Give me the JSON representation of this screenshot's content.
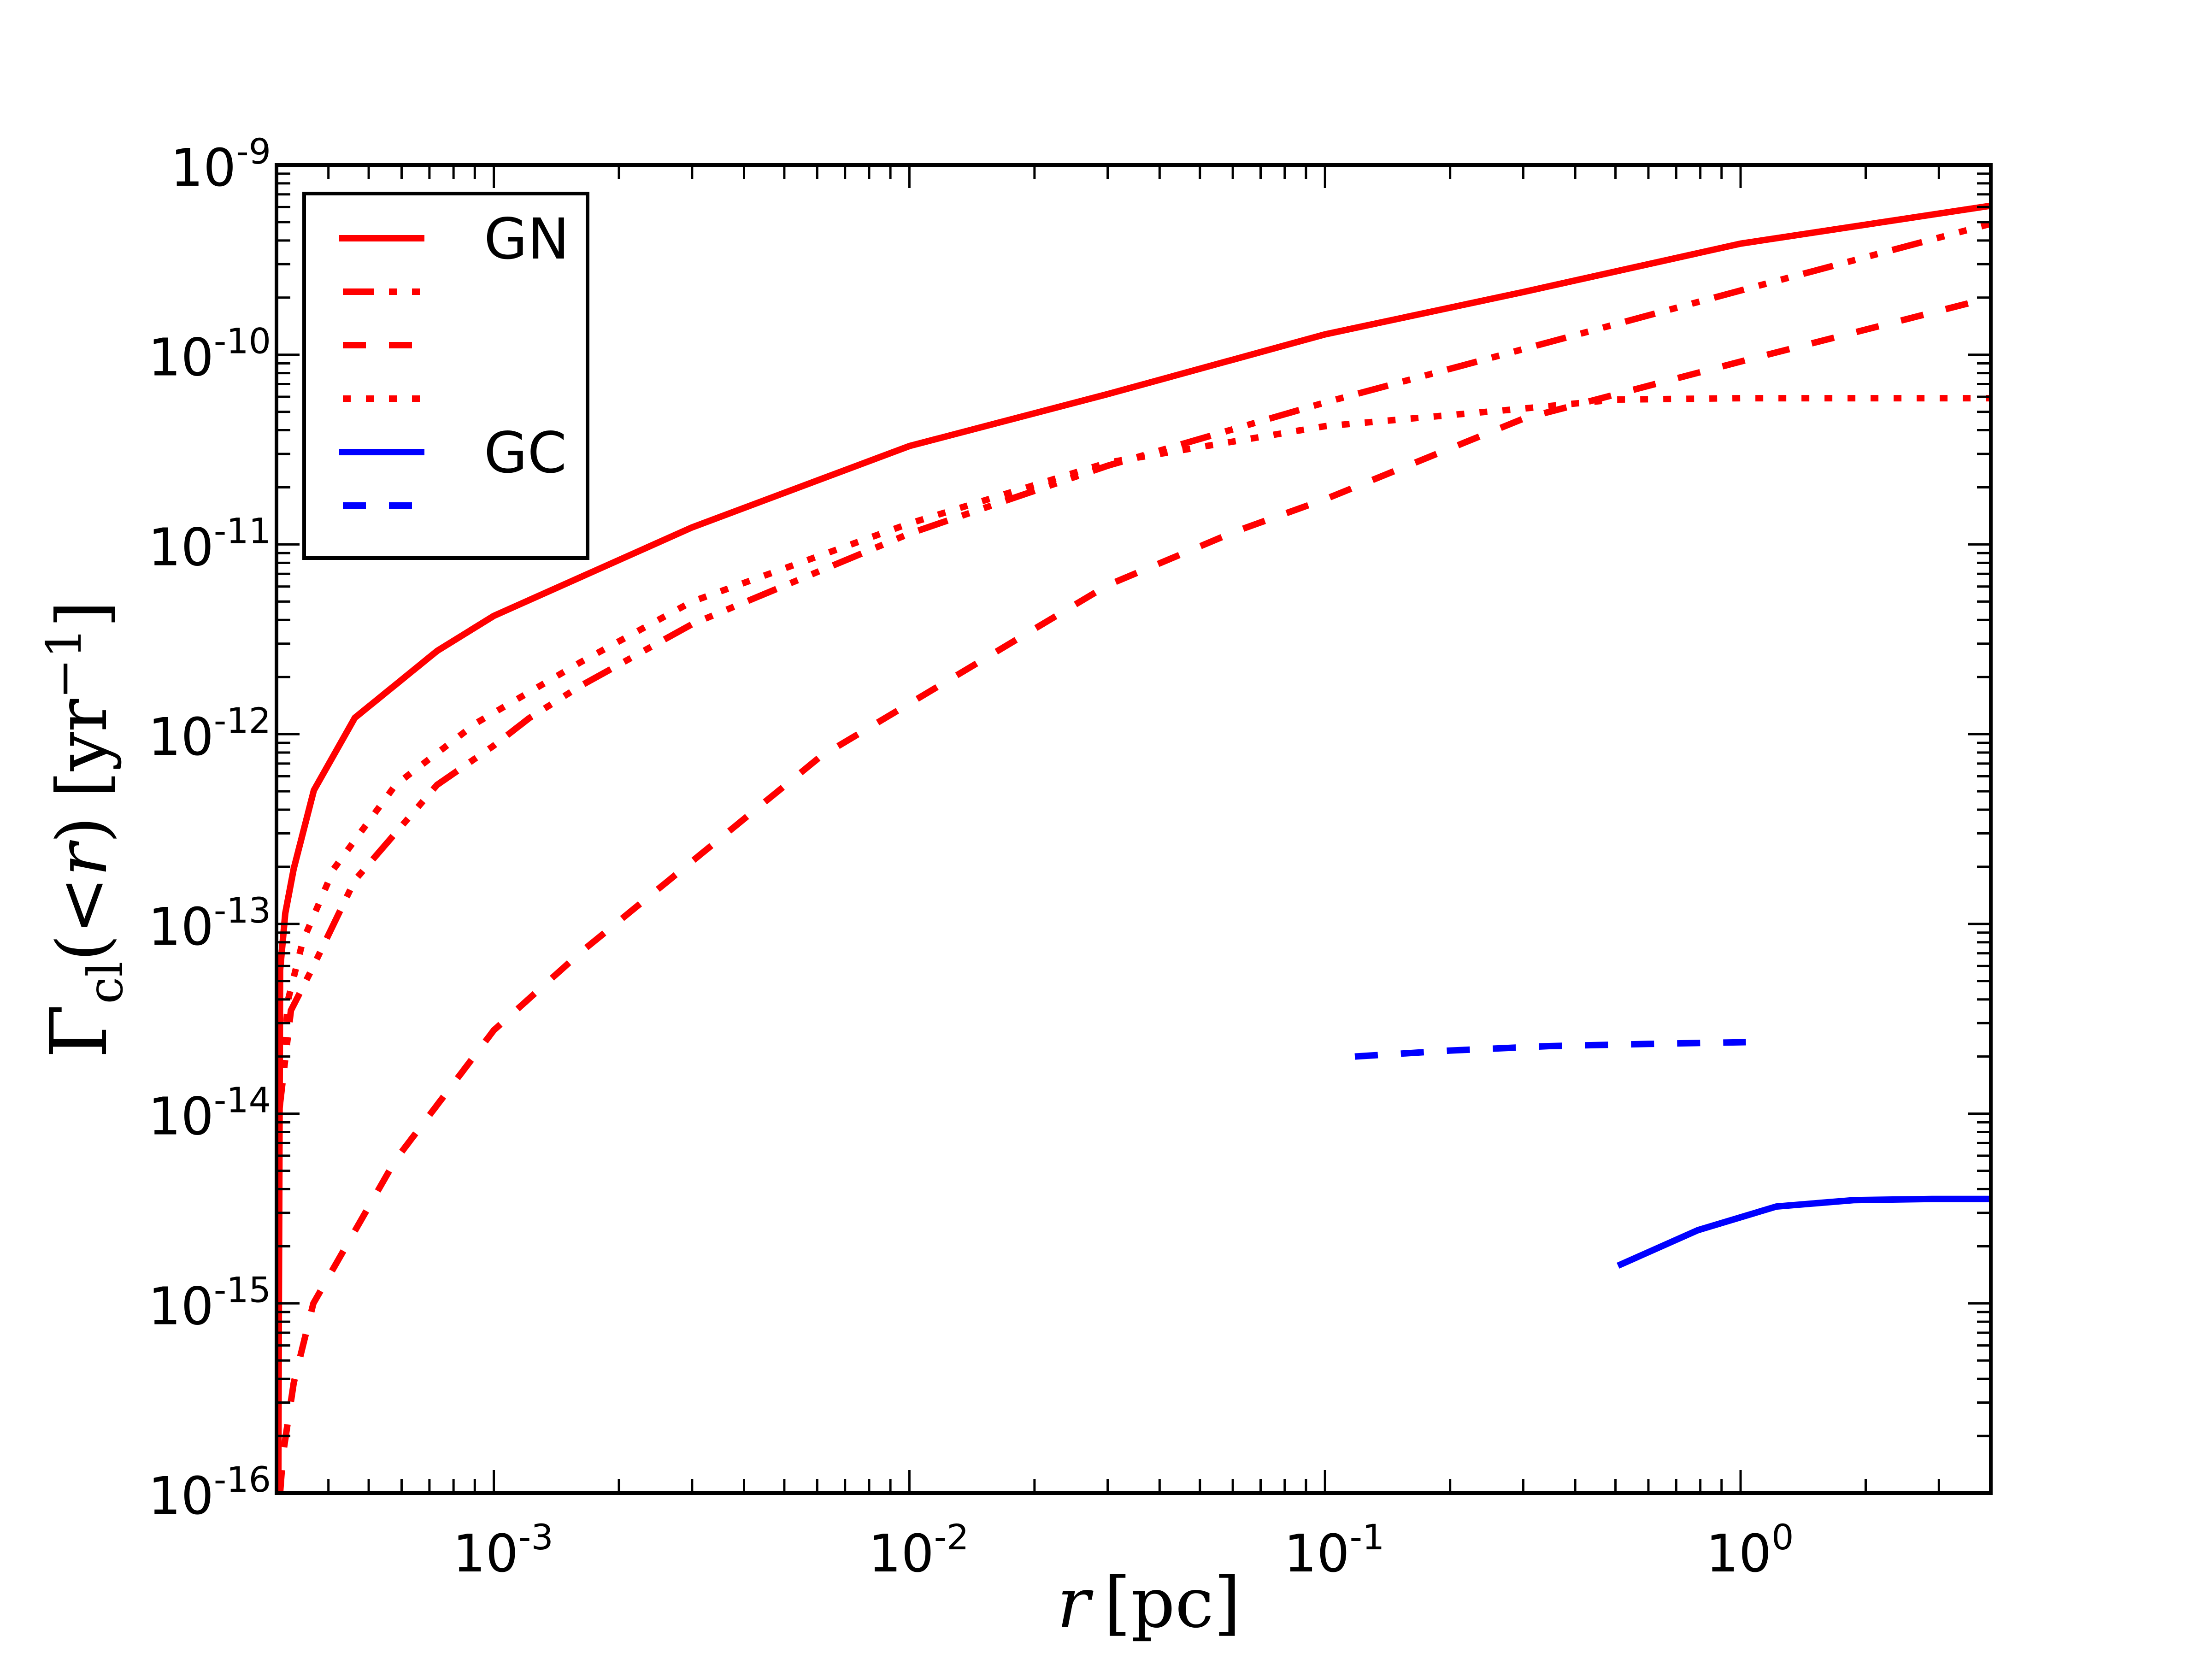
{
  "chart_data": {
    "type": "line",
    "title": "",
    "xlabel": "r [pc]",
    "ylabel": "Γcl(<r) [yr−1]",
    "xscale": "log",
    "yscale": "log",
    "xlim": [
      0.0003,
      4
    ],
    "ylim": [
      1e-16,
      1e-09
    ],
    "grid": false,
    "legend_placement": "top-left",
    "xticks": [
      {
        "value": 0.001,
        "base": "10",
        "exp": "-3"
      },
      {
        "value": 0.01,
        "base": "10",
        "exp": "-2"
      },
      {
        "value": 0.1,
        "base": "10",
        "exp": "-1"
      },
      {
        "value": 1,
        "base": "10",
        "exp": "0"
      }
    ],
    "yticks": [
      {
        "value": 1e-09,
        "base": "10",
        "exp": "-9"
      },
      {
        "value": 1e-10,
        "base": "10",
        "exp": "-10"
      },
      {
        "value": 1e-11,
        "base": "10",
        "exp": "-11"
      },
      {
        "value": 1e-12,
        "base": "10",
        "exp": "-12"
      },
      {
        "value": 1e-13,
        "base": "10",
        "exp": "-13"
      },
      {
        "value": 1e-14,
        "base": "10",
        "exp": "-14"
      },
      {
        "value": 1e-15,
        "base": "10",
        "exp": "-15"
      },
      {
        "value": 1e-16,
        "base": "10",
        "exp": "-16"
      }
    ],
    "series": [
      {
        "name": "GN",
        "color": "#ff0000",
        "style": "solid",
        "points": [
          [
            0.000303,
            1e-16
          ],
          [
            0.000304,
            1e-15
          ],
          [
            0.000306,
            5.7e-14
          ],
          [
            0.000315,
            1.14e-13
          ],
          [
            0.00033,
            1.95e-13
          ],
          [
            0.000369,
            5.06e-13
          ],
          [
            0.000463,
            1.22e-12
          ],
          [
            0.000731,
            2.75e-12
          ],
          [
            0.001,
            4.2e-12
          ],
          [
            0.003,
            1.23e-11
          ],
          [
            0.01,
            3.3e-11
          ],
          [
            0.03,
            6.2e-11
          ],
          [
            0.1,
            1.28e-10
          ],
          [
            0.3,
            2.14e-10
          ],
          [
            1,
            3.85e-10
          ],
          [
            4,
            6.1e-10
          ]
        ]
      },
      {
        "color": "#ff0000",
        "style": "dash-dot-dot",
        "points": [
          [
            0.000304,
            1e-14
          ],
          [
            0.000325,
            3.5e-14
          ],
          [
            0.000364,
            5.7e-14
          ],
          [
            0.000463,
            1.7e-13
          ],
          [
            0.00073,
            5.4e-13
          ],
          [
            0.001,
            8.7e-13
          ],
          [
            0.00122,
            1.22e-12
          ],
          [
            0.00162,
            1.8e-12
          ],
          [
            0.003,
            3.8e-12
          ],
          [
            0.01,
            1.14e-11
          ],
          [
            0.03,
            2.6e-11
          ],
          [
            0.1,
            5.6e-11
          ],
          [
            0.3,
            1.07e-10
          ],
          [
            1,
            2.18e-10
          ],
          [
            4,
            4.9e-10
          ]
        ]
      },
      {
        "color": "#ff0000",
        "style": "dashed",
        "points": [
          [
            0.000306,
            1e-16
          ],
          [
            0.000311,
            1.6e-16
          ],
          [
            0.00033,
            3.8e-16
          ],
          [
            0.000368,
            1e-15
          ],
          [
            0.00058,
            5.7e-15
          ],
          [
            0.001,
            2.75e-14
          ],
          [
            0.00162,
            7.1e-14
          ],
          [
            0.0061,
            7.6e-13
          ],
          [
            0.01,
            1.45e-12
          ],
          [
            0.03,
            6.1e-12
          ],
          [
            0.0608,
            1.17e-11
          ],
          [
            0.1,
            1.73e-11
          ],
          [
            0.3,
            4.6e-11
          ],
          [
            1,
            9.2e-11
          ],
          [
            4,
            2e-10
          ]
        ]
      },
      {
        "color": "#ff0000",
        "style": "dotted",
        "points": [
          [
            0.000304,
            1e-14
          ],
          [
            0.00032,
            4e-14
          ],
          [
            0.000347,
            8.1e-14
          ],
          [
            0.000412,
            1.95e-13
          ],
          [
            0.00058,
            5.4e-13
          ],
          [
            0.00091,
            1.15e-12
          ],
          [
            0.00162,
            2.4e-12
          ],
          [
            0.003,
            5e-12
          ],
          [
            0.01,
            1.29e-11
          ],
          [
            0.03,
            2.7e-11
          ],
          [
            0.1,
            4.2e-11
          ],
          [
            0.3,
            5.2e-11
          ],
          [
            0.5,
            5.8e-11
          ],
          [
            1,
            5.9e-11
          ],
          [
            4,
            5.9e-11
          ]
        ]
      },
      {
        "name": "GC",
        "color": "#0000ff",
        "style": "solid",
        "points": [
          [
            0.507,
            1.58e-15
          ],
          [
            0.789,
            2.43e-15
          ],
          [
            1.22,
            3.24e-15
          ],
          [
            1.87,
            3.5e-15
          ],
          [
            2.89,
            3.55e-15
          ],
          [
            4,
            3.55e-15
          ]
        ]
      },
      {
        "color": "#0000ff",
        "style": "dashed",
        "points": [
          [
            0.118,
            2e-14
          ],
          [
            0.2,
            2.15e-14
          ],
          [
            0.346,
            2.27e-14
          ],
          [
            0.6,
            2.33e-14
          ],
          [
            1.03,
            2.38e-14
          ]
        ]
      }
    ]
  }
}
